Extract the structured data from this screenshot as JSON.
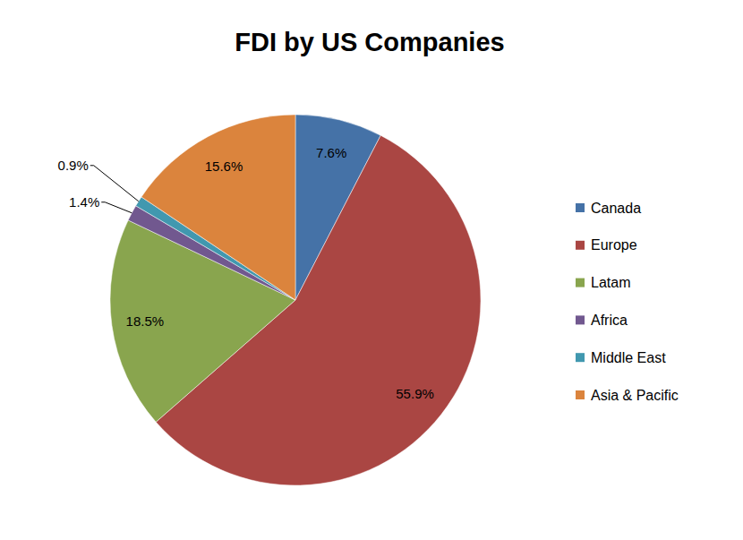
{
  "chart_data": {
    "type": "pie",
    "title": "FDI by US Companies",
    "categories": [
      "Canada",
      "Europe",
      "Latam",
      "Africa",
      "Middle East",
      "Asia & Pacific"
    ],
    "values": [
      7.6,
      55.9,
      18.5,
      1.4,
      0.9,
      15.6
    ],
    "value_labels": [
      "7.6%",
      "55.9%",
      "18.5%",
      "1.4%",
      "0.9%",
      "15.6%"
    ],
    "colors": [
      "#4572a7",
      "#aa4643",
      "#89a54e",
      "#71588f",
      "#4198af",
      "#db843d"
    ],
    "data_labels": true,
    "legend": "right"
  }
}
